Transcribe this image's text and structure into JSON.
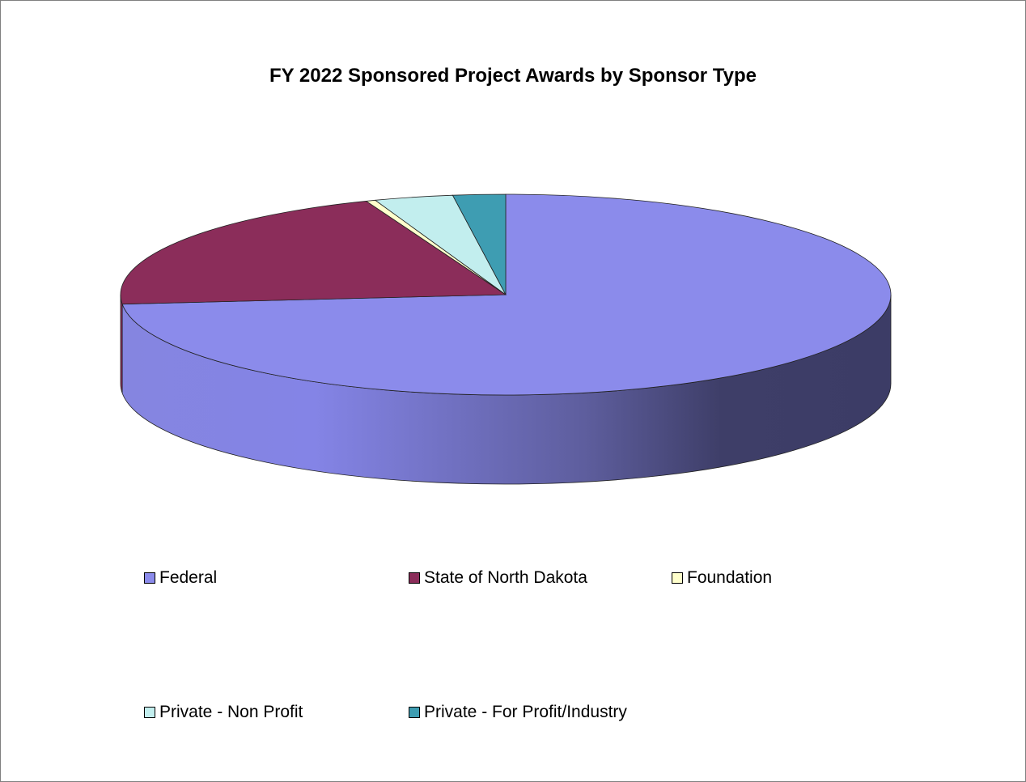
{
  "chart_data": {
    "type": "pie",
    "title": "FY 2022 Sponsored Project Awards by Sponsor Type",
    "slices": [
      {
        "label": "Federal",
        "value": 73.5,
        "color": "#8B8BEB"
      },
      {
        "label": "State of North Dakota",
        "value": 20.6,
        "color": "#8B2D5A"
      },
      {
        "label": "Foundation",
        "value": 0.4,
        "color": "#FFFFCC"
      },
      {
        "label": "Private - Non Profit",
        "value": 3.3,
        "color": "#C2EEEE"
      },
      {
        "label": "Private - For Profit/Industry",
        "value": 2.2,
        "color": "#3E9DB2"
      }
    ],
    "legend_position": "bottom",
    "style": "3d"
  }
}
